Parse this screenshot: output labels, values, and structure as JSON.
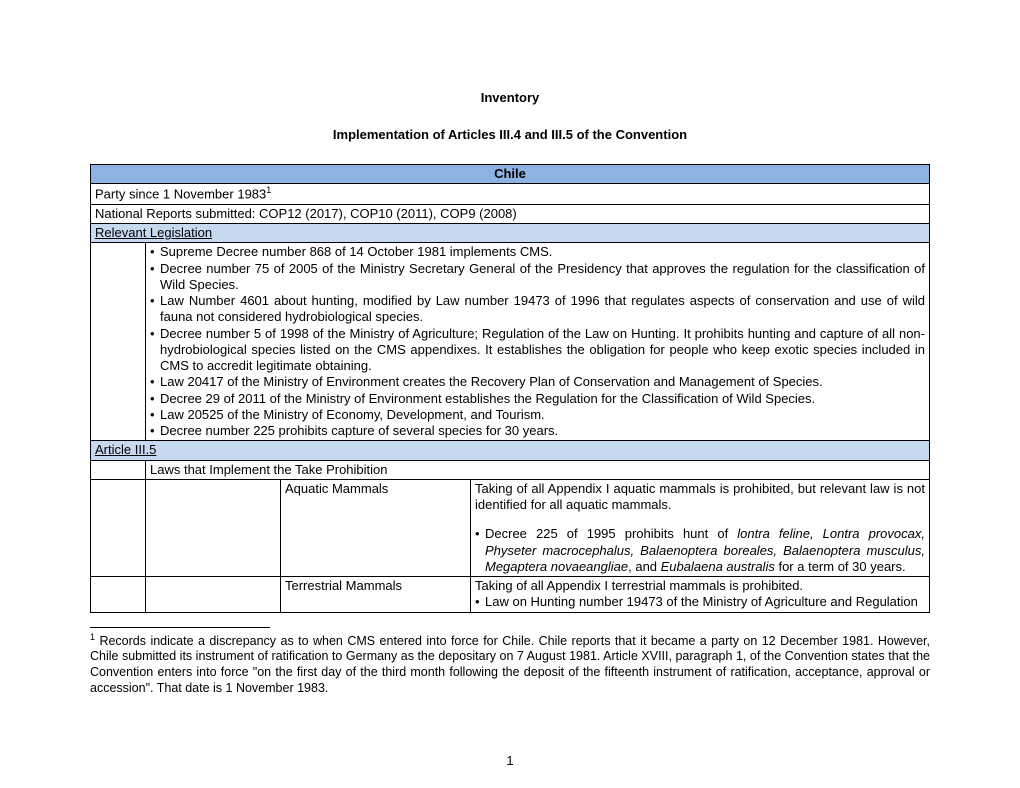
{
  "title": "Inventory",
  "subtitle": "Implementation of Articles III.4 and III.5 of the Convention",
  "country": "Chile",
  "party_since": "Party since 1 November 1983",
  "party_since_sup": "1",
  "national_reports": "National Reports submitted: COP12 (2017), COP10 (2011), COP9 (2008)",
  "section_legislation": "Relevant Legislation",
  "legislation_bullets": [
    "Supreme Decree number 868 of 14 October 1981 implements CMS.",
    "Decree number 75 of 2005 of the Ministry Secretary General of the Presidency that approves the regulation for the classification of Wild Species.",
    "Law Number 4601 about hunting, modified by Law number 19473 of 1996 that regulates aspects of conservation and use of wild fauna not considered hydrobiological species.",
    "Decree number 5 of 1998 of the Ministry of Agriculture; Regulation of the Law on Hunting. It prohibits hunting and capture of all non-hydrobiological species listed on the CMS appendixes. It establishes the obligation for people who keep exotic species included in CMS to accredit legitimate obtaining.",
    "Law 20417 of the Ministry of Environment creates the Recovery Plan of Conservation and Management of Species.",
    "Decree 29 of 2011 of the Ministry of Environment establishes the Regulation for the Classification of Wild Species.",
    "Law 20525 of the Ministry of Economy, Development, and Tourism.",
    "Decree number 225 prohibits capture of several species for 30 years."
  ],
  "section_article": "Article III.5",
  "laws_header": "Laws that Implement the Take Prohibition",
  "rows": [
    {
      "label": "Aquatic Mammals",
      "intro": "Taking of all Appendix I aquatic mammals is prohibited, but relevant law is not identified for all aquatic mammals.",
      "bullet_pre": "Decree 225 of 1995 prohibits hunt of ",
      "bullet_italics": "lontra feline, Lontra provocax, Physeter macrocephalus, Balaenoptera boreales, Balaenoptera musculus, Megaptera novaeangliae",
      "bullet_mid": ", and ",
      "bullet_italics2": "Eubalaena australis",
      "bullet_post": " for a term of 30 years."
    },
    {
      "label": "Terrestrial Mammals",
      "intro": "Taking of all Appendix I terrestrial mammals is prohibited.",
      "bullet_pre": "Law on Hunting number 19473 of the Ministry of Agriculture and Regulation"
    }
  ],
  "footnote_marker": "1",
  "footnote_text": " Records indicate a discrepancy as to when CMS entered into force for Chile. Chile reports that it became a party on 12 December 1981. However, Chile submitted its instrument of ratification to Germany as the depositary on 7 August 1981. Article XVIII, paragraph 1, of the Convention states that the Convention enters into force \"on the first day of the third month following the deposit of the fifteenth instrument of ratification, acceptance, approval or accession\". That date is 1 November 1983.",
  "page_number": "1"
}
